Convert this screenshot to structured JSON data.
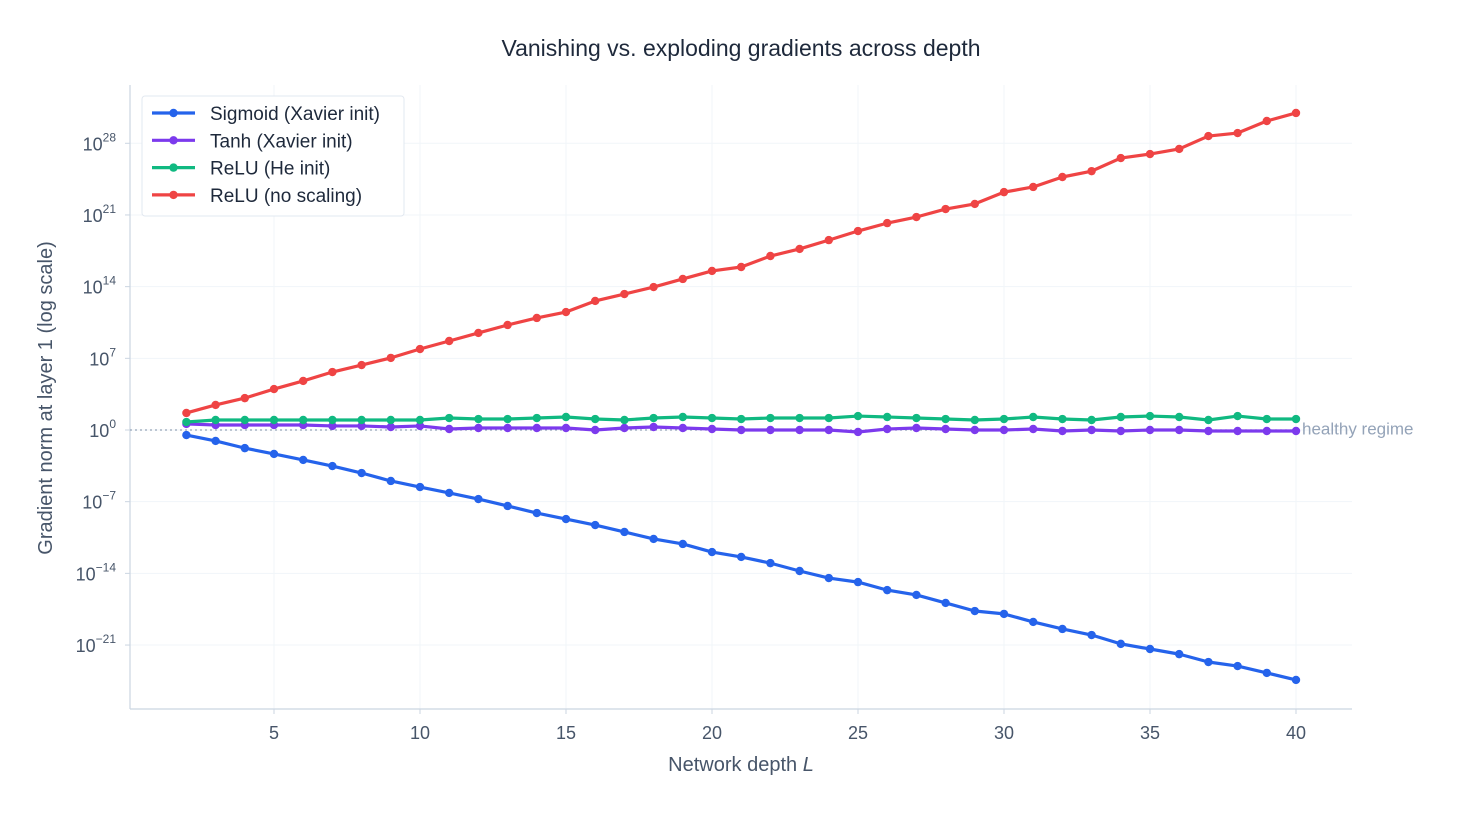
{
  "chart_data": {
    "type": "line",
    "title": "Vanishing vs. exploding gradients across depth",
    "xlabel": "Network depth",
    "xlabel_var": "L",
    "ylabel": "Gradient norm at layer 1 (log scale)",
    "yscale": "log",
    "xlim": [
      0,
      42
    ],
    "ylim_exponents": [
      -27,
      32
    ],
    "x_ticks": [
      5,
      10,
      15,
      20,
      25,
      30,
      35,
      40
    ],
    "y_ticks": [
      {
        "base": "10",
        "exp": "−21",
        "p": -21
      },
      {
        "base": "10",
        "exp": "−14",
        "p": -14
      },
      {
        "base": "10",
        "exp": "−7",
        "p": -7
      },
      {
        "base": "10",
        "exp": "0",
        "p": 0
      },
      {
        "base": "10",
        "exp": "7",
        "p": 7
      },
      {
        "base": "10",
        "exp": "14",
        "p": 14
      },
      {
        "base": "10",
        "exp": "21",
        "p": 21
      },
      {
        "base": "10",
        "exp": "28",
        "p": 28
      }
    ],
    "grid": true,
    "legend_position": "top-left",
    "reference_line": {
      "value": 1,
      "label": "healthy regime",
      "color": "#94a3b8"
    },
    "x": [
      2,
      3,
      4,
      5,
      6,
      7,
      8,
      9,
      10,
      11,
      12,
      13,
      14,
      15,
      16,
      17,
      18,
      19,
      20,
      21,
      22,
      23,
      24,
      25,
      26,
      27,
      28,
      29,
      30,
      31,
      32,
      33,
      34,
      35,
      36,
      37,
      38,
      39,
      40
    ],
    "series": [
      {
        "name": "Sigmoid (Xavier init)",
        "color": "#2563eb",
        "values": [
          0.32,
          0.085,
          0.017,
          0.0046,
          0.0012,
          0.0003,
          6.3e-05,
          1.05e-05,
          2.7e-06,
          7.1e-07,
          1.8e-07,
          3.8e-08,
          7.8e-09,
          2e-09,
          5.2e-10,
          1.1e-10,
          2.3e-11,
          7.4e-12,
          1.2e-12,
          4e-13,
          1e-13,
          1.7e-14,
          3.5e-15,
          1.4e-15,
          2.3e-16,
          7.8e-17,
          1.3e-17,
          2.1e-18,
          1.1e-18,
          1.8e-19,
          3.7e-20,
          9.5e-21,
          1.3e-21,
          4.1e-22,
          1.3e-22,
          2.2e-23,
          8.9e-24,
          1.9e-24,
          3.9e-25
        ]
      },
      {
        "name": "Tanh (Xavier init)",
        "color": "#7c3aed",
        "values": [
          3.9,
          3.1,
          3.1,
          3.1,
          3.1,
          2.5,
          2.5,
          1.96,
          2.5,
          1.25,
          1.57,
          1.57,
          1.57,
          1.57,
          1.0,
          1.57,
          1.96,
          1.57,
          1.25,
          1.0,
          1.0,
          1.0,
          1.0,
          0.64,
          1.25,
          1.57,
          1.25,
          1.0,
          1.0,
          1.25,
          0.8,
          1.0,
          0.8,
          1.0,
          1.0,
          0.8,
          0.8,
          0.8,
          0.8
        ]
      },
      {
        "name": "ReLU (He init)",
        "color": "#10b981",
        "values": [
          6.0,
          9.5,
          9.5,
          9.5,
          9.5,
          9.5,
          9.5,
          9.5,
          9.5,
          14.8,
          11.8,
          11.8,
          14.8,
          18.6,
          11.8,
          9.5,
          14.8,
          18.6,
          14.8,
          11.8,
          14.8,
          14.8,
          14.8,
          23,
          18.6,
          14.8,
          11.8,
          9.5,
          11.8,
          18.6,
          11.8,
          9.5,
          18.6,
          23,
          18.6,
          9.5,
          23,
          11.8,
          11.8
        ]
      },
      {
        "name": "ReLU (no scaling)",
        "color": "#ef4444",
        "values": [
          46.0,
          280.0,
          1300.0,
          10000.0,
          62000.0,
          460000.0,
          2200000.0,
          11000000.0,
          81000000.0,
          490000000.0,
          3000000000.0,
          18000000000.0,
          87000000000.0,
          330000000000.0,
          4000000000000.0,
          19000000000000.0,
          91000000000000.0,
          560000000000000.0,
          3400000000000000.0,
          8300000000000000.0,
          9.8e+16,
          4.8e+17,
          3.5e+18,
          2.7e+19,
          1.6e+20,
          6.3e+20,
          3.8e+21,
          1.2e+22,
          1.7e+23,
          5.4e+23,
          5.1e+24,
          1.9e+25,
          3.6e+26,
          8.9e+26,
          2.8e+27,
          5.1e+28,
          1e+29,
          1.5e+30,
          9.1e+30
        ]
      }
    ]
  }
}
